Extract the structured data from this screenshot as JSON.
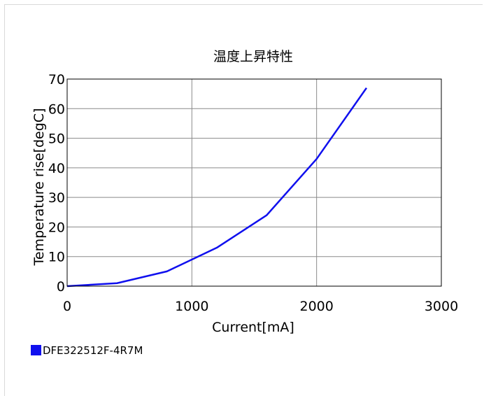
{
  "chart_data": {
    "type": "line",
    "title": "温度上昇特性",
    "xlabel": "Current[mA]",
    "ylabel": "Temperature rise[degC]",
    "xlim": [
      0,
      3000
    ],
    "ylim": [
      0,
      70
    ],
    "x_ticks": [
      0,
      1000,
      2000,
      3000
    ],
    "y_ticks": [
      0,
      10,
      20,
      30,
      40,
      50,
      60,
      70
    ],
    "x_grid": true,
    "y_grid": true,
    "legend_position": "bottom-left",
    "series": [
      {
        "name": "DFE322512F-4R7M",
        "color": "#1010ee",
        "x": [
          0,
          400,
          800,
          1200,
          1600,
          2000,
          2400
        ],
        "y": [
          0,
          1,
          5,
          13,
          24,
          43,
          67
        ]
      }
    ]
  }
}
